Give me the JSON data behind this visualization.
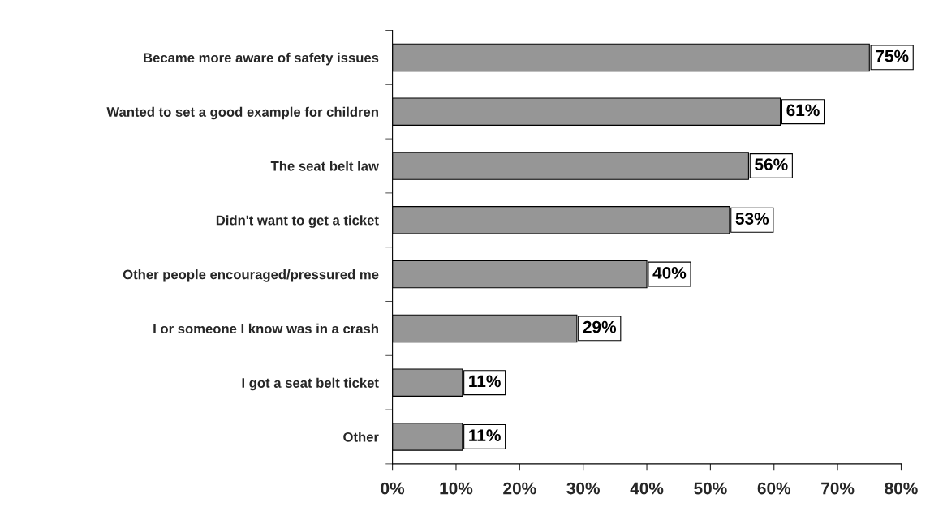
{
  "chart_data": {
    "type": "bar",
    "orientation": "horizontal",
    "categories": [
      "Became more aware of safety issues",
      "Wanted to set a good example for children",
      "The seat belt law",
      "Didn't want to get a ticket",
      "Other people encouraged/pressured me",
      "I or someone I know was in a crash",
      "I got a seat belt ticket",
      "Other"
    ],
    "values": [
      75,
      61,
      56,
      53,
      40,
      29,
      11,
      11
    ],
    "value_labels": [
      "75%",
      "61%",
      "56%",
      "53%",
      "40%",
      "29%",
      "11%",
      "11%"
    ],
    "color": "#969696",
    "xlim": [
      0,
      80
    ],
    "xticks": [
      {
        "value": 0,
        "label": "0%"
      },
      {
        "value": 10,
        "label": "10%"
      },
      {
        "value": 20,
        "label": "20%"
      },
      {
        "value": 30,
        "label": "30%"
      },
      {
        "value": 40,
        "label": "40%"
      },
      {
        "value": 50,
        "label": "50%"
      },
      {
        "value": 60,
        "label": "60%"
      },
      {
        "value": 70,
        "label": "70%"
      },
      {
        "value": 80,
        "label": "80%"
      }
    ],
    "grid": false,
    "legend": false
  }
}
